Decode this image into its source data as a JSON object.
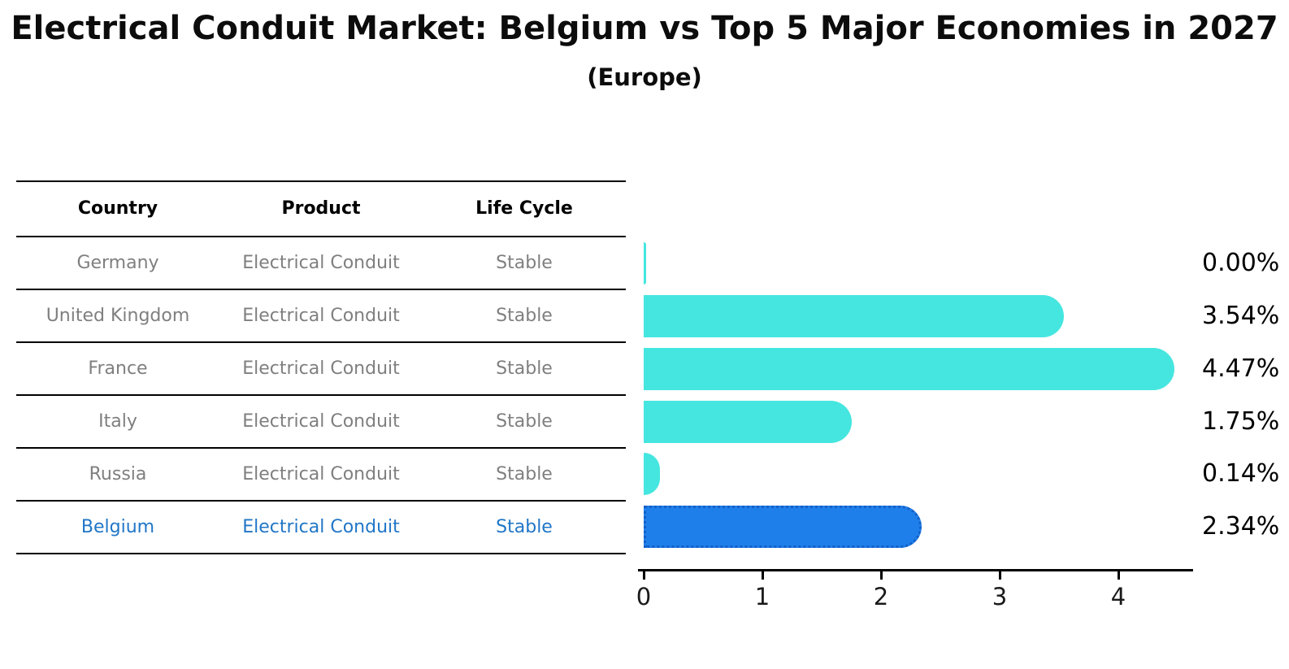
{
  "header": {
    "title": "Electrical Conduit Market: Belgium vs Top 5 Major Economies in 2027",
    "subtitle": "(Europe)"
  },
  "table": {
    "columns": [
      "Country",
      "Product",
      "Life Cycle"
    ],
    "rows": [
      {
        "country": "Germany",
        "product": "Electrical Conduit",
        "life_cycle": "Stable",
        "highlight": false
      },
      {
        "country": "United Kingdom",
        "product": "Electrical Conduit",
        "life_cycle": "Stable",
        "highlight": false
      },
      {
        "country": "France",
        "product": "Electrical Conduit",
        "life_cycle": "Stable",
        "highlight": false
      },
      {
        "country": "Italy",
        "product": "Electrical Conduit",
        "life_cycle": "Stable",
        "highlight": false
      },
      {
        "country": "Russia",
        "product": "Electrical Conduit",
        "life_cycle": "Stable",
        "highlight": false
      },
      {
        "country": "Belgium",
        "product": "Electrical Conduit",
        "life_cycle": "Stable",
        "highlight": true
      }
    ]
  },
  "chart_data": {
    "type": "bar",
    "orientation": "horizontal",
    "title": "Electrical Conduit Market: Belgium vs Top 5 Major Economies in 2027",
    "subtitle": "(Europe)",
    "categories": [
      "Germany",
      "United Kingdom",
      "France",
      "Italy",
      "Russia",
      "Belgium"
    ],
    "values": [
      0.0,
      3.54,
      4.47,
      1.75,
      0.14,
      2.34
    ],
    "value_labels": [
      "0.00%",
      "3.54%",
      "4.47%",
      "1.75%",
      "0.14%",
      "2.34%"
    ],
    "x_ticks": [
      "0",
      "1",
      "2",
      "3",
      "4"
    ],
    "xlim": [
      0,
      4.63
    ],
    "grid": false,
    "legend": false,
    "highlight_category": "Belgium",
    "colors": {
      "bar": "#45e6df",
      "highlight_bar": "#1e7fea",
      "highlight_border": "#1560c8",
      "highlight_text": "#2176c7",
      "row_text": "#7f7f7f",
      "header_text": "#000000",
      "axis": "#000000"
    }
  }
}
